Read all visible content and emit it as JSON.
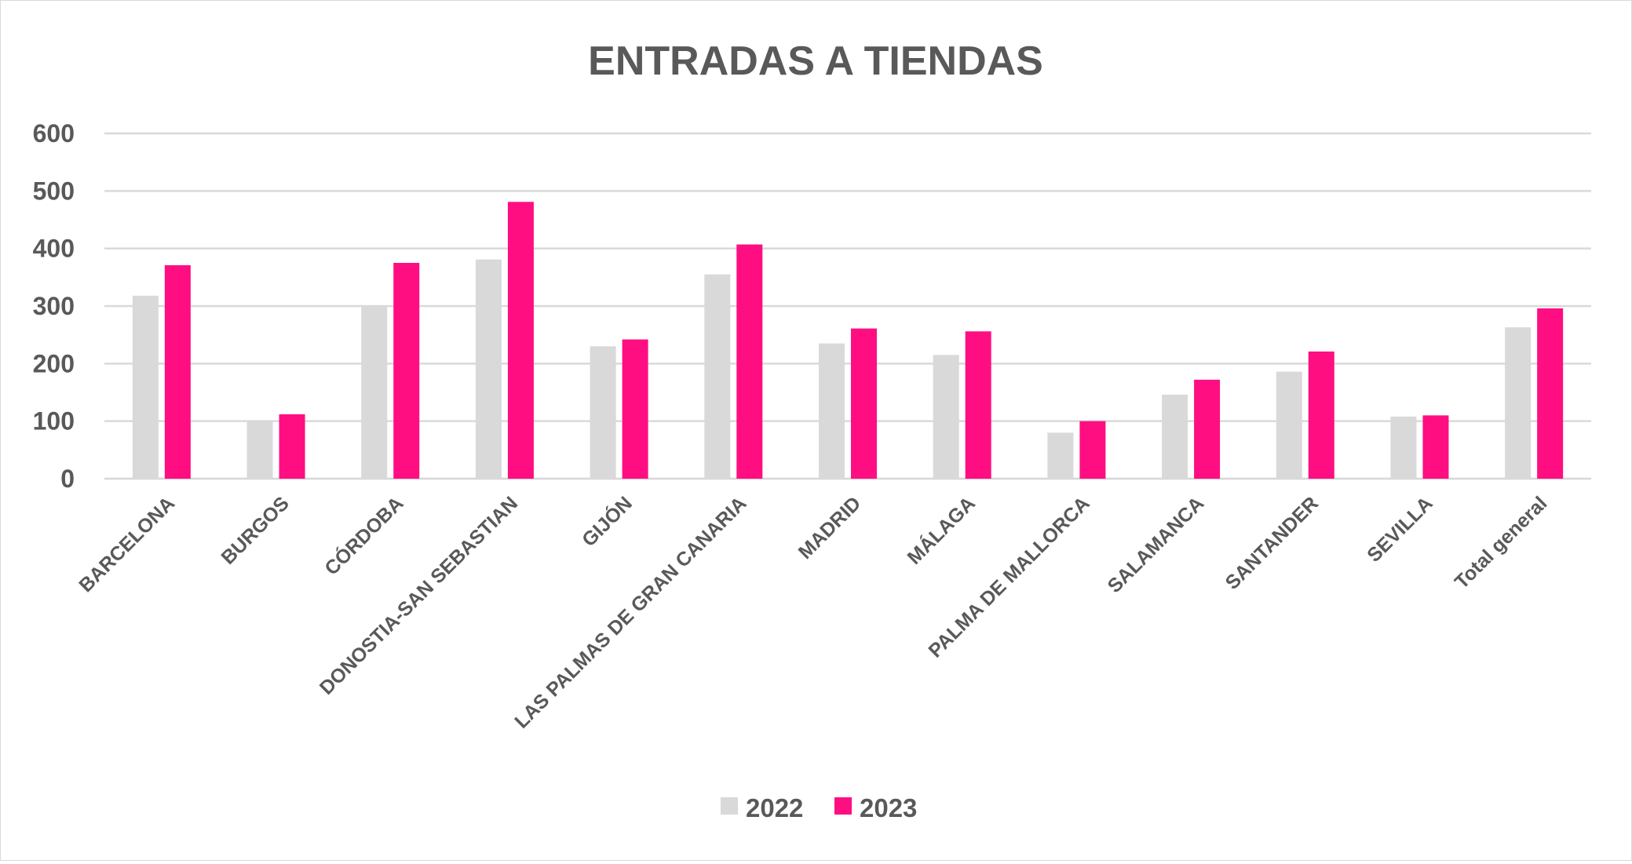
{
  "chart_data": {
    "type": "bar",
    "title": "ENTRADAS A TIENDAS",
    "xlabel": "",
    "ylabel": "",
    "ylim": [
      0,
      600
    ],
    "yticks": [
      "0",
      "100",
      "200",
      "300",
      "400",
      "500",
      "600"
    ],
    "grid": true,
    "legend_position": "bottom",
    "categories": [
      "BARCELONA",
      "BURGOS",
      "CÓRDOBA",
      "DONOSTIA-SAN SEBASTIAN",
      "GIJÓN",
      "LAS PALMAS DE GRAN CANARIA",
      "MADRID",
      "MÁLAGA",
      "PALMA DE MALLORCA",
      "SALAMANCA",
      "SANTANDER",
      "SEVILLA",
      "Total general"
    ],
    "series": [
      {
        "name": "2022",
        "color": "#d9d9d9",
        "values": [
          318,
          100,
          300,
          381,
          230,
          355,
          235,
          215,
          80,
          146,
          186,
          108,
          263
        ]
      },
      {
        "name": "2023",
        "color": "#ff0e82",
        "values": [
          371,
          112,
          375,
          481,
          242,
          407,
          261,
          256,
          100,
          172,
          221,
          110,
          296
        ]
      }
    ]
  }
}
